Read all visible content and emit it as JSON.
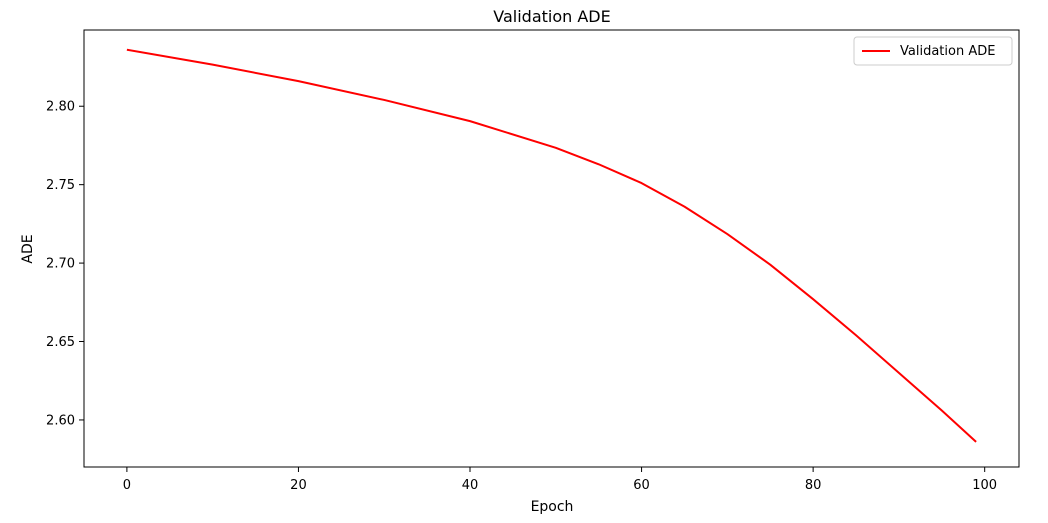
{
  "chart_data": {
    "type": "line",
    "title": "Validation ADE",
    "xlabel": "Epoch",
    "ylabel": "ADE",
    "xlim": [
      -5.0,
      104.0
    ],
    "ylim": [
      2.57,
      2.8486
    ],
    "xticks": [
      0,
      20,
      40,
      60,
      80,
      100
    ],
    "yticks": [
      2.6,
      2.65,
      2.7,
      2.75,
      2.8
    ],
    "ytick_labels": [
      "2.60",
      "2.65",
      "2.70",
      "2.75",
      "2.80"
    ],
    "grid": false,
    "legend": {
      "position": "top-right"
    },
    "series": [
      {
        "name": "Validation ADE",
        "color": "#ff0000",
        "x": [
          0,
          10,
          20,
          30,
          40,
          50,
          55,
          60,
          65,
          70,
          75,
          80,
          85,
          90,
          95,
          99
        ],
        "y": [
          2.836,
          2.8265,
          2.816,
          2.804,
          2.7905,
          2.7735,
          2.763,
          2.751,
          2.736,
          2.7185,
          2.699,
          2.677,
          2.654,
          2.63,
          2.606,
          2.586
        ]
      }
    ]
  }
}
